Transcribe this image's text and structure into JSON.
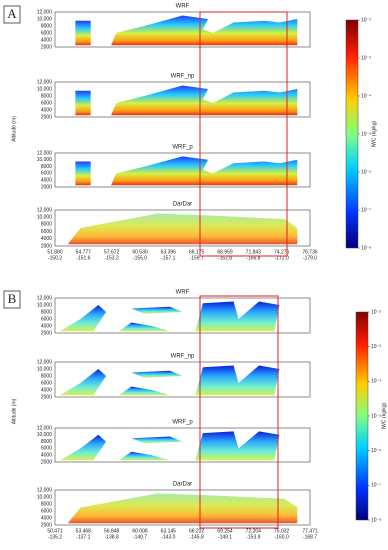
{
  "panels": [
    {
      "label": "A",
      "subplots": [
        "WRF",
        "WRF_np",
        "WRF_p",
        "DarDar"
      ],
      "y_axis_label": "Altitude (m)",
      "y_ticks": [
        "12,000",
        "10,000",
        "8000",
        "6000",
        "4000",
        "2000"
      ],
      "x_ticks": [
        {
          "lat": "51.880",
          "lon": "-150.2"
        },
        {
          "lat": "54.777",
          "lon": "-151.6"
        },
        {
          "lat": "57.672",
          "lon": "-153.2"
        },
        {
          "lat": "60.530",
          "lon": "-155.0"
        },
        {
          "lat": "63.396",
          "lon": "-157.1"
        },
        {
          "lat": "66.175",
          "lon": "-159.7"
        },
        {
          "lat": "68.959",
          "lon": "-162.8"
        },
        {
          "lat": "71.843",
          "lon": "-166.8"
        },
        {
          "lat": "74.276",
          "lon": "-172.0"
        },
        {
          "lat": "76.736",
          "lon": "-179.0"
        }
      ],
      "colorbar": {
        "label": "IWC (kg/kg)",
        "ticks": [
          "10⁻²",
          "10⁻³",
          "10⁻⁴",
          "10⁻⁵",
          "10⁻⁶",
          "10⁻⁷",
          "10⁻⁸"
        ]
      }
    },
    {
      "label": "B",
      "subplots": [
        "WRF",
        "WRF_np",
        "WRF_p",
        "DarDar"
      ],
      "y_axis_label": "Altitude (m)",
      "y_ticks": [
        "12,000",
        "10,000",
        "8000",
        "6000",
        "4000",
        "2000"
      ],
      "x_ticks": [
        {
          "lat": "50.471",
          "lon": "-135.2"
        },
        {
          "lat": "53.468",
          "lon": "-137.1"
        },
        {
          "lat": "56.848",
          "lon": "-138.8"
        },
        {
          "lat": "60.008",
          "lon": "-140.7"
        },
        {
          "lat": "63.145",
          "lon": "-143.0"
        },
        {
          "lat": "66.232",
          "lon": "-145.8"
        },
        {
          "lat": "69.254",
          "lon": "-149.1"
        },
        {
          "lat": "72.204",
          "lon": "-153.9"
        },
        {
          "lat": "75.032",
          "lon": "-160.0"
        },
        {
          "lat": "77.471",
          "lon": "-168.7"
        }
      ],
      "colorbar": {
        "label": "IWC (kg/kg)",
        "ticks": [
          "10⁻²",
          "10⁻³",
          "10⁻⁴",
          "10⁻⁵",
          "10⁻⁶",
          "10⁻⁷",
          "10⁻⁸"
        ]
      }
    }
  ]
}
